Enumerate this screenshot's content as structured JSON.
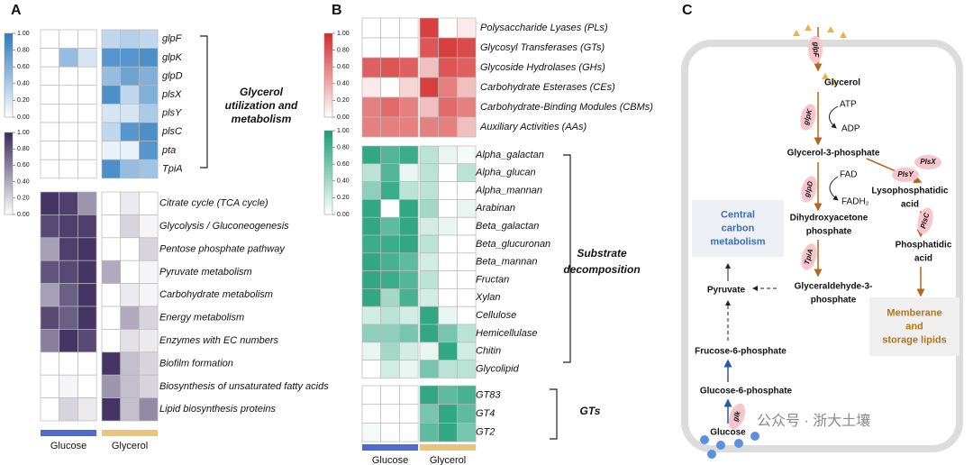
{
  "panel_labels": [
    "A",
    "B",
    "C"
  ],
  "chart_data": [
    {
      "type": "heatmap",
      "rows": [
        "glpF",
        "glpK",
        "glpD",
        "plsX",
        "plsY",
        "plsC",
        "pta",
        "TpiA"
      ],
      "values": [
        [
          0,
          0,
          0,
          0.3,
          0.35,
          0.3
        ],
        [
          0,
          0.5,
          0.2,
          0.8,
          0.8,
          0.85
        ],
        [
          0,
          0,
          0,
          0.5,
          0.7,
          0.6
        ],
        [
          0,
          0,
          0,
          0.85,
          0.3,
          0.6
        ],
        [
          0,
          0,
          0,
          0.2,
          0.2,
          0.4
        ],
        [
          0,
          0,
          0,
          0.3,
          0.8,
          0.85
        ],
        [
          0,
          0,
          0,
          0.1,
          0.1,
          0.8
        ],
        [
          0,
          0,
          0,
          0.85,
          0.5,
          0.45
        ]
      ],
      "colorscale": [
        "#ffffff",
        "#2c7bc0"
      ],
      "zlim": [
        0,
        1
      ],
      "zticks": [
        {
          "value": 0,
          "label": "0.00"
        },
        {
          "value": 0.2,
          "label": "0.20"
        },
        {
          "value": 0.4,
          "label": "0.40"
        },
        {
          "value": 0.6,
          "label": "0.60"
        },
        {
          "value": 0.8,
          "label": "0.80"
        },
        {
          "value": 1,
          "label": "1.00"
        }
      ],
      "annotation": [
        "Glycerol",
        "utilization and",
        "metabolism"
      ]
    },
    {
      "type": "heatmap",
      "rows": [
        "Citrate cycle (TCA cycle)",
        "Glycolysis / Gluconeogenesis",
        "Pentose phosphate pathway",
        "Pyruvate metabolism",
        "Carbohydrate metabolism",
        "Energy metabolism",
        "Enzymes with EC numbers",
        "Biofilm formation",
        "Biosynthesis of unsaturated fatty acids",
        "Lipid biosynthesis proteins"
      ],
      "values": [
        [
          0.95,
          0.9,
          0.5,
          0,
          0.1,
          0
        ],
        [
          0.85,
          0.9,
          0.9,
          0,
          0.2,
          0.05
        ],
        [
          0.45,
          0.9,
          0.95,
          0,
          0,
          0.2
        ],
        [
          0.8,
          0.85,
          0.95,
          0.4,
          0,
          0.05
        ],
        [
          0.45,
          0.75,
          0.95,
          0,
          0.1,
          0.05
        ],
        [
          0.85,
          0.75,
          0.95,
          0,
          0.4,
          0.2
        ],
        [
          0.6,
          0.95,
          0.85,
          0,
          0.15,
          0.1
        ],
        [
          0,
          0,
          0,
          0.95,
          0.3,
          0.2
        ],
        [
          0,
          0.05,
          0,
          0.5,
          0.3,
          0.2
        ],
        [
          0,
          0.2,
          0.1,
          0.95,
          0.3,
          0.55
        ]
      ],
      "colorscale": [
        "#ffffff",
        "#3b2a5c"
      ],
      "zlim": [
        0,
        1
      ],
      "zticks": [
        {
          "value": 0,
          "label": "0.00"
        },
        {
          "value": 0.2,
          "label": "0.20"
        },
        {
          "value": 0.4,
          "label": "0.40"
        },
        {
          "value": 0.6,
          "label": "0.60"
        },
        {
          "value": 0.8,
          "label": "0.80"
        },
        {
          "value": 1,
          "label": "1.00"
        }
      ],
      "column_groups": [
        {
          "name": "Glucose",
          "color": "#4f6bd0"
        },
        {
          "name": "Glycerol",
          "color": "#e9c47a"
        }
      ]
    },
    {
      "type": "heatmap",
      "rows": [
        "Polysaccharide Lyases (PLs)",
        "Glycosyl Transferases (GTs)",
        "Glycoside Hydrolases (GHs)",
        "Carbohydrate Esterases (CEs)",
        "Carbohydrate-Binding Modules (CBMs)",
        "Auxiliary Activities (AAs)"
      ],
      "values": [
        [
          0,
          0,
          0,
          0.9,
          0,
          0.1
        ],
        [
          0,
          0,
          0,
          0.8,
          0.9,
          0.85
        ],
        [
          0.75,
          0.8,
          0.75,
          0.3,
          0.8,
          0.75
        ],
        [
          0.1,
          0,
          0.2,
          0.9,
          0.6,
          0.3
        ],
        [
          0.6,
          0.7,
          0.6,
          0.3,
          0.7,
          0.6
        ],
        [
          0.6,
          0.6,
          0.6,
          0.6,
          0.6,
          0.3
        ]
      ],
      "colorscale": [
        "#ffffff",
        "#d42b2b"
      ],
      "zlim": [
        0,
        1
      ],
      "zticks": [
        {
          "value": 0,
          "label": "0.00"
        },
        {
          "value": 0.2,
          "label": "0.20"
        },
        {
          "value": 0.4,
          "label": "0.40"
        },
        {
          "value": 0.6,
          "label": "0.60"
        },
        {
          "value": 0.8,
          "label": "0.80"
        },
        {
          "value": 1,
          "label": "1.00"
        }
      ]
    },
    {
      "type": "heatmap",
      "rows": [
        "Alpha_galactan",
        "Alpha_glucan",
        "Alpha_mannan",
        "Arabinan",
        "Beta_galactan",
        "Beta_glucuronan",
        "Beta_mannan",
        "Fructan",
        "Xylan",
        "Cellulose",
        "Hemicellulase",
        "Chitin",
        "Glycolipid"
      ],
      "values": [
        [
          0.9,
          0.75,
          0.85,
          0.3,
          0.1,
          0.05
        ],
        [
          0.3,
          0.75,
          0.1,
          0.3,
          0,
          0.3
        ],
        [
          0.5,
          0.85,
          0.3,
          0.3,
          0,
          0
        ],
        [
          0.9,
          0,
          0.9,
          0.4,
          0,
          0.1
        ],
        [
          0.9,
          0.7,
          0.9,
          0.2,
          0.1,
          0
        ],
        [
          0.85,
          0.85,
          0.9,
          0.3,
          0,
          0
        ],
        [
          0.9,
          0.8,
          0.7,
          0.2,
          0,
          0
        ],
        [
          0.9,
          0.85,
          0.75,
          0.3,
          0,
          0
        ],
        [
          0.9,
          0.4,
          0.8,
          0.2,
          0,
          0
        ],
        [
          0.2,
          0.3,
          0.2,
          0.9,
          0.1,
          0
        ],
        [
          0.5,
          0.5,
          0.6,
          0.9,
          0.6,
          0.3
        ],
        [
          0.1,
          0.4,
          0.2,
          0.1,
          0.9,
          0.2
        ],
        [
          0,
          0.2,
          0.1,
          0.6,
          0.3,
          0.3
        ]
      ],
      "colorscale": [
        "#ffffff",
        "#1a9e74"
      ],
      "zlim": [
        0,
        1
      ],
      "zticks": [
        {
          "value": 0,
          "label": "0.00"
        },
        {
          "value": 0.2,
          "label": "0.20"
        },
        {
          "value": 0.4,
          "label": "0.40"
        },
        {
          "value": 0.6,
          "label": "0.60"
        },
        {
          "value": 0.8,
          "label": "0.80"
        },
        {
          "value": 1,
          "label": "1.00"
        }
      ],
      "annotation": [
        "Substrate",
        "decomposition"
      ]
    },
    {
      "type": "heatmap",
      "rows": [
        "GT83",
        "GT4",
        "GT2"
      ],
      "values": [
        [
          0,
          0,
          0,
          0.9,
          0.7,
          0.8
        ],
        [
          0,
          0,
          0,
          0.6,
          0.9,
          0.7
        ],
        [
          0.05,
          0,
          0,
          0.7,
          0.9,
          0.6
        ]
      ],
      "colorscale": [
        "#ffffff",
        "#1a9e74"
      ],
      "zlim": [
        0,
        1
      ],
      "annotation": [
        "GTs"
      ],
      "column_groups": [
        {
          "name": "Glucose",
          "color": "#4f6bd0"
        },
        {
          "name": "Glycerol",
          "color": "#e9c47a"
        }
      ]
    }
  ],
  "diagram": {
    "nodes": [
      [
        "Glycerol"
      ],
      [
        "Glycerol-3-phosphate"
      ],
      [
        "Dihydroxyacetone",
        "phosphate"
      ],
      [
        "Glyceraldehyde-3-",
        "phosphate"
      ],
      [
        "Pyruvate"
      ],
      [
        "Frucose-6-phosphate"
      ],
      [
        "Glucose-6-phosphate"
      ],
      [
        "Glucose"
      ],
      [
        "Lysophosphatidic",
        "acid"
      ],
      [
        "Phosphatidic",
        "acid"
      ]
    ],
    "enzymes": [
      "glpF",
      "glpK",
      "glpD",
      "TpiA",
      "glk",
      "PlsX",
      "PlsY",
      "PlsC"
    ],
    "cofactors": [
      "ATP",
      "ADP",
      "FAD",
      "FADH₂"
    ],
    "boxes": [
      [
        "Central",
        "carbon",
        "metabolism"
      ],
      [
        "Memberane",
        "and",
        "storage lipids"
      ]
    ]
  },
  "watermark": "公众号 · 浙大土壤"
}
